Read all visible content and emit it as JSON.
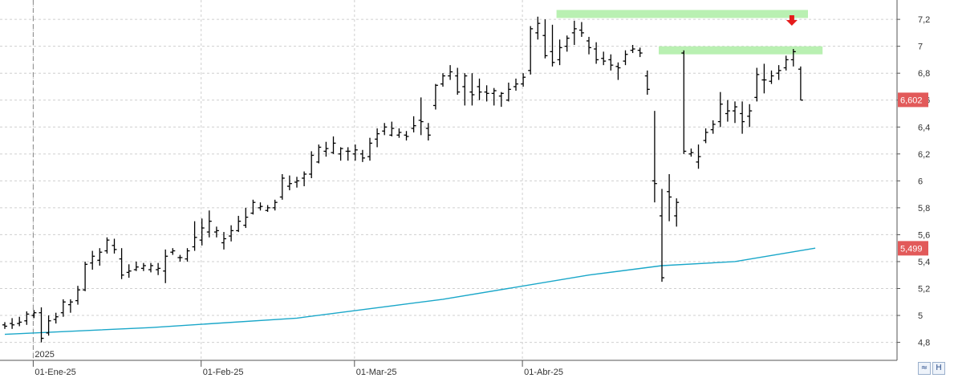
{
  "chart_data": {
    "type": "ohlc-bar",
    "ylim": [
      4.72,
      7.32
    ],
    "y_ticks": [
      "4,8",
      "5",
      "5,2",
      "5,4",
      "5,6",
      "5,8",
      "6",
      "6,2",
      "6,4",
      "6,6",
      "6,8",
      "7",
      "7,2"
    ],
    "x_labels": [
      "01-Ene-25",
      "01-Feb-25",
      "01-Mar-25",
      "01-Abr-25"
    ],
    "x_label_bar_index": [
      4,
      27,
      48,
      71
    ],
    "year_label": "2025",
    "grid": true,
    "colors": {
      "bar": "#000000",
      "ma": "#1aa7c9",
      "highlight": "#b9f0b2",
      "arrow": "#e51b1b",
      "badge": "#e25a5a",
      "grid": "#cfcfcf"
    },
    "bars": [
      [
        4.95,
        4.93,
        4.9,
        4.92
      ],
      [
        4.98,
        4.94,
        4.9,
        4.93
      ],
      [
        4.99,
        4.94,
        4.92,
        4.95
      ],
      [
        5.03,
        4.96,
        4.93,
        5.01
      ],
      [
        5.04,
        5.0,
        4.98,
        5.02
      ],
      [
        5.06,
        5.02,
        4.8,
        4.83
      ],
      [
        5.0,
        4.87,
        4.85,
        4.96
      ],
      [
        5.02,
        4.97,
        4.94,
        4.99
      ],
      [
        5.12,
        5.02,
        4.99,
        5.1
      ],
      [
        5.12,
        5.08,
        5.02,
        5.1
      ],
      [
        5.22,
        5.11,
        5.08,
        5.19
      ],
      [
        5.4,
        5.19,
        5.18,
        5.38
      ],
      [
        5.48,
        5.39,
        5.34,
        5.44
      ],
      [
        5.5,
        5.41,
        5.37,
        5.47
      ],
      [
        5.58,
        5.48,
        5.46,
        5.56
      ],
      [
        5.57,
        5.52,
        5.46,
        5.49
      ],
      [
        5.5,
        5.42,
        5.27,
        5.3
      ],
      [
        5.38,
        5.32,
        5.28,
        5.33
      ],
      [
        5.4,
        5.34,
        5.33,
        5.36
      ],
      [
        5.39,
        5.35,
        5.33,
        5.37
      ],
      [
        5.39,
        5.34,
        5.32,
        5.37
      ],
      [
        5.39,
        5.34,
        5.3,
        5.35
      ],
      [
        5.49,
        5.33,
        5.24,
        5.44
      ],
      [
        5.5,
        5.47,
        5.45,
        5.48
      ],
      [
        5.45,
        5.43,
        5.4,
        5.43
      ],
      [
        5.5,
        5.42,
        5.4,
        5.48
      ],
      [
        5.7,
        5.51,
        5.48,
        5.58
      ],
      [
        5.72,
        5.56,
        5.52,
        5.65
      ],
      [
        5.78,
        5.62,
        5.58,
        5.7
      ],
      [
        5.66,
        5.62,
        5.58,
        5.63
      ],
      [
        5.62,
        5.54,
        5.49,
        5.57
      ],
      [
        5.67,
        5.59,
        5.55,
        5.63
      ],
      [
        5.74,
        5.63,
        5.62,
        5.7
      ],
      [
        5.8,
        5.67,
        5.65,
        5.73
      ],
      [
        5.86,
        5.76,
        5.75,
        5.84
      ],
      [
        5.84,
        5.8,
        5.78,
        5.81
      ],
      [
        5.82,
        5.78,
        5.77,
        5.8
      ],
      [
        5.86,
        5.8,
        5.78,
        5.84
      ],
      [
        6.05,
        5.88,
        5.86,
        6.02
      ],
      [
        6.04,
        5.96,
        5.93,
        5.98
      ],
      [
        6.03,
        5.99,
        5.95,
        6.0
      ],
      [
        6.07,
        6.02,
        5.96,
        6.05
      ],
      [
        6.22,
        6.05,
        6.02,
        6.19
      ],
      [
        6.27,
        6.14,
        6.13,
        6.25
      ],
      [
        6.29,
        6.22,
        6.18,
        6.24
      ],
      [
        6.33,
        6.21,
        6.2,
        6.28
      ],
      [
        6.25,
        6.2,
        6.15,
        6.24
      ],
      [
        6.25,
        6.22,
        6.15,
        6.22
      ],
      [
        6.27,
        6.2,
        6.15,
        6.23
      ],
      [
        6.23,
        6.2,
        6.14,
        6.17
      ],
      [
        6.32,
        6.18,
        6.15,
        6.28
      ],
      [
        6.39,
        6.31,
        6.25,
        6.35
      ],
      [
        6.43,
        6.37,
        6.34,
        6.4
      ],
      [
        6.44,
        6.34,
        6.33,
        6.39
      ],
      [
        6.39,
        6.34,
        6.32,
        6.36
      ],
      [
        6.37,
        6.34,
        6.3,
        6.33
      ],
      [
        6.48,
        6.39,
        6.36,
        6.41
      ],
      [
        6.62,
        6.45,
        6.34,
        6.44
      ],
      [
        6.43,
        6.39,
        6.3,
        6.34
      ],
      [
        6.72,
        6.56,
        6.53,
        6.71
      ],
      [
        6.8,
        6.72,
        6.7,
        6.78
      ],
      [
        6.86,
        6.78,
        6.75,
        6.81
      ],
      [
        6.84,
        6.78,
        6.64,
        6.66
      ],
      [
        6.8,
        6.7,
        6.56,
        6.78
      ],
      [
        6.8,
        6.66,
        6.56,
        6.64
      ],
      [
        6.76,
        6.7,
        6.6,
        6.66
      ],
      [
        6.71,
        6.66,
        6.59,
        6.65
      ],
      [
        6.69,
        6.65,
        6.56,
        6.67
      ],
      [
        6.66,
        6.63,
        6.55,
        6.65
      ],
      [
        6.73,
        6.6,
        6.59,
        6.68
      ],
      [
        6.76,
        6.7,
        6.67,
        6.72
      ],
      [
        6.8,
        6.72,
        6.7,
        6.77
      ],
      [
        7.15,
        6.82,
        6.79,
        7.13
      ],
      [
        7.22,
        7.1,
        7.05,
        7.17
      ],
      [
        7.2,
        7.08,
        6.91,
        6.93
      ],
      [
        7.16,
        6.96,
        6.85,
        6.88
      ],
      [
        7.05,
        6.9,
        6.86,
        6.99
      ],
      [
        7.08,
        7.0,
        6.96,
        7.06
      ],
      [
        7.19,
        7.1,
        7.01,
        7.13
      ],
      [
        7.18,
        7.12,
        7.07,
        7.1
      ],
      [
        7.07,
        7.04,
        6.94,
        6.99
      ],
      [
        7.03,
        6.98,
        6.87,
        6.9
      ],
      [
        6.96,
        6.91,
        6.86,
        6.89
      ],
      [
        6.94,
        6.9,
        6.82,
        6.86
      ],
      [
        6.88,
        6.85,
        6.75,
        6.84
      ],
      [
        6.97,
        6.89,
        6.86,
        6.94
      ],
      [
        7.01,
        6.97,
        6.95,
        6.98
      ],
      [
        6.99,
        6.97,
        6.92,
        6.95
      ],
      [
        6.82,
        6.78,
        6.64,
        6.68
      ],
      [
        6.52,
        6.0,
        5.84,
        5.98
      ],
      [
        5.94,
        5.74,
        5.25,
        5.28
      ],
      [
        6.05,
        5.92,
        5.7,
        5.88
      ],
      [
        5.87,
        5.74,
        5.66,
        5.84
      ],
      [
        6.97,
        6.95,
        6.2,
        6.22
      ],
      [
        6.24,
        6.2,
        6.18,
        6.21
      ],
      [
        6.27,
        6.14,
        6.09,
        6.18
      ],
      [
        6.39,
        6.3,
        6.28,
        6.36
      ],
      [
        6.45,
        6.38,
        6.35,
        6.42
      ],
      [
        6.66,
        6.44,
        6.4,
        6.57
      ],
      [
        6.6,
        6.5,
        6.44,
        6.52
      ],
      [
        6.59,
        6.52,
        6.43,
        6.55
      ],
      [
        6.59,
        6.5,
        6.35,
        6.44
      ],
      [
        6.57,
        6.48,
        6.4,
        6.52
      ],
      [
        6.84,
        6.62,
        6.59,
        6.79
      ],
      [
        6.87,
        6.75,
        6.65,
        6.75
      ],
      [
        6.82,
        6.74,
        6.72,
        6.78
      ],
      [
        6.86,
        6.8,
        6.75,
        6.82
      ],
      [
        6.93,
        6.84,
        6.82,
        6.9
      ],
      [
        6.98,
        6.9,
        6.85,
        6.96
      ],
      [
        6.85,
        6.83,
        6.6,
        6.6
      ]
    ],
    "moving_average": [
      [
        0,
        4.86
      ],
      [
        20,
        4.91
      ],
      [
        40,
        4.98
      ],
      [
        60,
        5.12
      ],
      [
        80,
        5.3
      ],
      [
        90,
        5.37
      ],
      [
        100,
        5.4
      ],
      [
        111,
        5.5
      ]
    ],
    "resistance_zones": [
      {
        "from_bar": 76,
        "to_bar": 110,
        "y": 7.24
      },
      {
        "from_bar": 90,
        "to_bar": 112,
        "y": 6.97
      }
    ],
    "arrow_bar_index": 109,
    "price_badges": [
      {
        "label": "6,602",
        "value": 6.602
      },
      {
        "label": "5,499",
        "value": 5.499
      }
    ]
  },
  "toolbar": {
    "scale_icon": "scale-icon",
    "save_icon": "save-icon"
  }
}
